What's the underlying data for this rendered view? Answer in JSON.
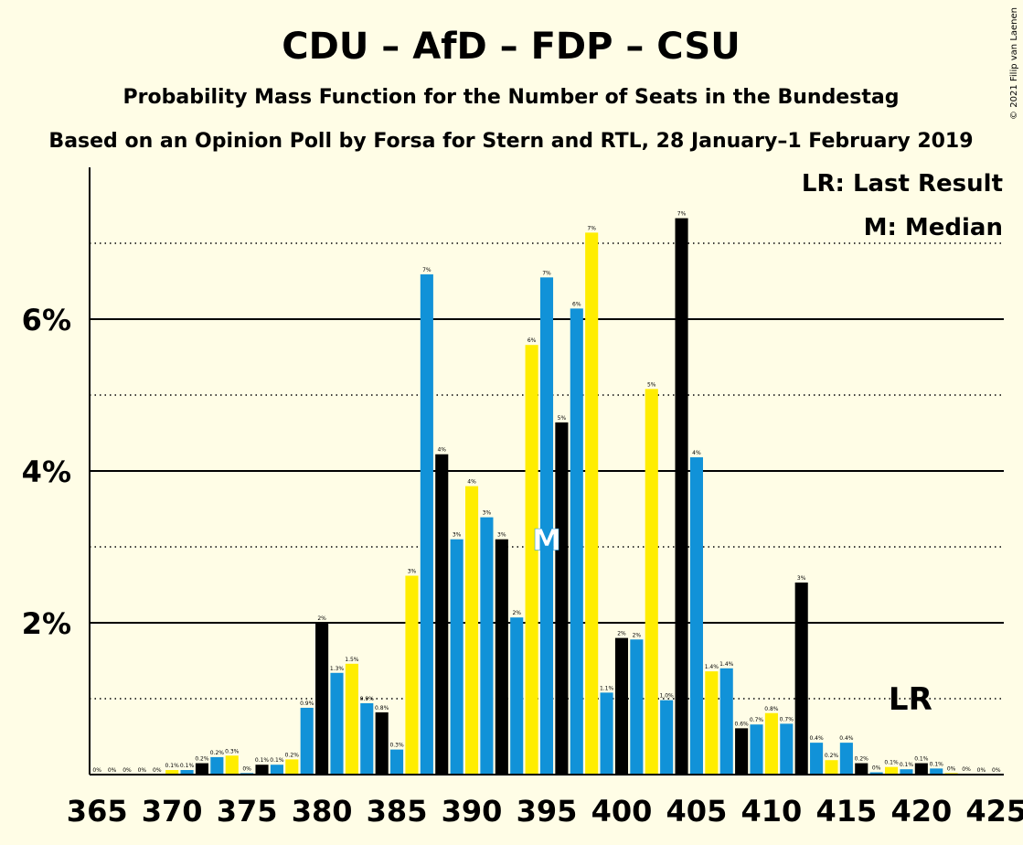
{
  "chart_data": {
    "type": "bar",
    "title": "CDU – AfD – FDP – CSU",
    "subtitle": "Probability Mass Function for the Number of Seats in the Bundestag",
    "subtitle2": "Based on an Opinion Poll by Forsa for Stern and RTL, 28 January–1 February 2019",
    "copyright": "© 2021 Filip van Laenen",
    "legend": [
      "LR: Last Result",
      "M: Median"
    ],
    "x": [
      365,
      366,
      367,
      368,
      369,
      370,
      371,
      372,
      373,
      374,
      375,
      376,
      377,
      378,
      379,
      380,
      381,
      382,
      383,
      384,
      385,
      386,
      387,
      388,
      389,
      390,
      391,
      392,
      393,
      394,
      395,
      396,
      397,
      398,
      399,
      400,
      401,
      402,
      403,
      404,
      405,
      406,
      407,
      408,
      409,
      410,
      411,
      412,
      413,
      414,
      415,
      416,
      417,
      418,
      419,
      420,
      421,
      422,
      423,
      424,
      425
    ],
    "values": [
      0,
      0,
      0,
      0,
      0,
      0.06,
      0.06,
      0.15,
      0.23,
      0.25,
      0.02,
      0.13,
      0.13,
      0.2,
      0.88,
      2.0,
      1.34,
      1.46,
      0.94,
      0.82,
      0.33,
      2.62,
      6.59,
      4.22,
      3.1,
      3.8,
      3.39,
      3.1,
      2.07,
      5.66,
      6.55,
      4.64,
      6.14,
      7.14,
      1.08,
      1.8,
      1.78,
      5.08,
      0.98,
      7.33,
      4.18,
      1.36,
      1.4,
      0.61,
      0.66,
      0.81,
      0.67,
      2.53,
      0.42,
      0.19,
      0.42,
      0.15,
      0.03,
      0.1,
      0.07,
      0.15,
      0.08,
      0.02,
      0.01,
      0,
      0
    ],
    "value_labels": [
      "0%",
      "0%",
      "0%",
      "0%",
      "0%",
      "0.1%",
      "0.1%",
      "0.2%",
      "0.2%",
      "0.3%",
      "0%",
      "0.1%",
      "0.1%",
      "0.2%",
      "0.9%",
      "2%",
      "1.3%",
      "1.5%",
      "0.9%",
      "0.8%",
      "0.3%",
      "3%",
      "7%",
      "4%",
      "3%",
      "4%",
      "3%",
      "3%",
      "2%",
      "6%",
      "7%",
      "5%",
      "6%",
      "7%",
      "1.1%",
      "2%",
      "2%",
      "5%",
      "1.0%",
      "7%",
      "4%",
      "1.4%",
      "1.4%",
      "0.6%",
      "0.7%",
      "0.8%",
      "0.7%",
      "3%",
      "0.4%",
      "0.2%",
      "0.4%",
      "0.2%",
      "0%",
      "0.1%",
      "0.1%",
      "0.1%",
      "0.1%",
      "0%",
      "0%",
      "0%",
      "0%"
    ],
    "color_cycle": [
      "#1192d8",
      "#ffed00",
      "#1192d8",
      "#000000"
    ],
    "xlim": [
      364.5,
      425.5
    ],
    "ylim": [
      0,
      8
    ],
    "xticks": [
      365,
      370,
      375,
      380,
      385,
      390,
      395,
      400,
      405,
      410,
      415,
      420,
      425
    ],
    "yticks": [
      {
        "value": 2,
        "label": "2%"
      },
      {
        "value": 4,
        "label": "4%"
      },
      {
        "value": 6,
        "label": "6%"
      }
    ],
    "minor_yticks": [
      1,
      3,
      5,
      7
    ],
    "grid": true,
    "median": 395,
    "median_label": "M",
    "median_value": 3.1,
    "last_result": 420,
    "last_result_label": "LR",
    "last_result_value": 1
  }
}
